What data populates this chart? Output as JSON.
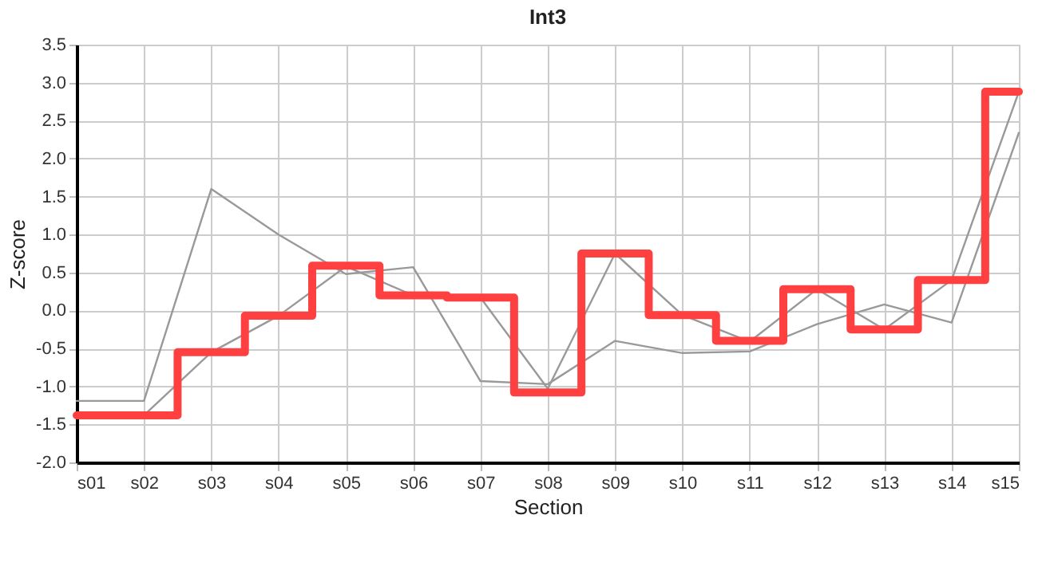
{
  "chart_data": {
    "type": "step",
    "title": "Int3",
    "xlabel": "Section",
    "ylabel": "Z-score",
    "categories": [
      "s01",
      "s02",
      "s03",
      "s04",
      "s05",
      "s06",
      "s07",
      "s08",
      "s09",
      "s10",
      "s11",
      "s12",
      "s13",
      "s14",
      "s15"
    ],
    "series": [
      {
        "type": "line",
        "color": "#999999",
        "values": [
          -1.19,
          -1.19,
          1.6,
          1.0,
          0.48,
          0.57,
          -0.93,
          -0.97,
          -0.4,
          -0.56,
          -0.54,
          -0.18,
          0.08,
          -0.16,
          2.34
        ]
      },
      {
        "type": "line",
        "color": "#999999",
        "values": [
          null,
          -1.38,
          -0.55,
          -0.07,
          0.58,
          0.2,
          0.17,
          -1.03,
          0.75,
          -0.06,
          -0.41,
          0.28,
          -0.25,
          0.4,
          2.88
        ]
      },
      {
        "color": "#ff4040",
        "values": [
          -1.38,
          -1.38,
          -0.55,
          -0.07,
          0.59,
          0.2,
          0.17,
          -1.08,
          0.75,
          -0.06,
          -0.4,
          0.28,
          -0.25,
          0.4,
          2.88
        ]
      }
    ],
    "ylim": [
      -2.0,
      3.5
    ],
    "yticks": [
      {
        "value": -2.0,
        "label": "-2.0"
      },
      {
        "value": -1.5,
        "label": "-1.5"
      },
      {
        "value": -1.0,
        "label": "-1.0"
      },
      {
        "value": -0.5,
        "label": "-0.5"
      },
      {
        "value": 0,
        "label": "0.0"
      },
      {
        "value": 0.5,
        "label": "0.5"
      },
      {
        "value": 1.0,
        "label": "1.0"
      },
      {
        "value": 1.5,
        "label": "1.5"
      },
      {
        "value": 2.0,
        "label": "2.0"
      },
      {
        "value": 2.5,
        "label": "2.5"
      },
      {
        "value": 3.0,
        "label": "3.0"
      },
      {
        "value": 3.5,
        "label": "3.5"
      }
    ],
    "grid": true,
    "legend": false
  }
}
